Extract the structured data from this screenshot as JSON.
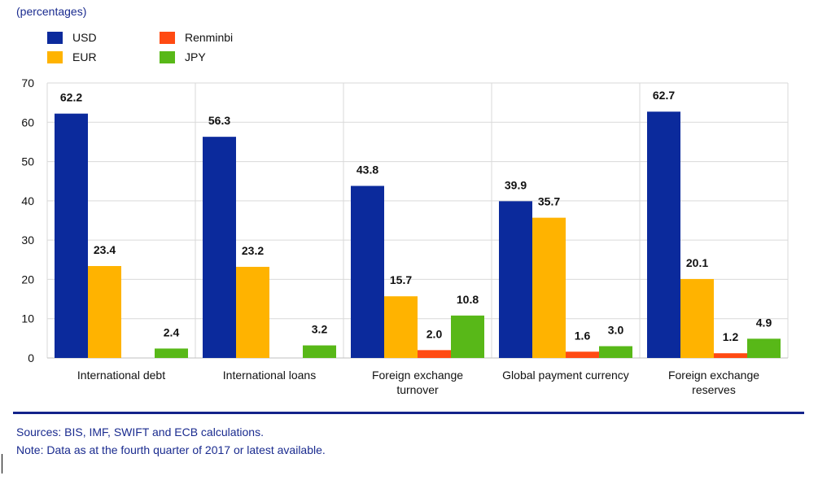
{
  "subtitle": "(percentages)",
  "legend": [
    {
      "name": "USD",
      "color": "#0b2a9c"
    },
    {
      "name": "Renminbi",
      "color": "#ff4a12"
    },
    {
      "name": "EUR",
      "color": "#ffb300"
    },
    {
      "name": "JPY",
      "color": "#58b818"
    }
  ],
  "chart_data": {
    "type": "bar",
    "categories": [
      [
        "International debt"
      ],
      [
        "International loans"
      ],
      [
        "Foreign exchange",
        "turnover"
      ],
      [
        "Global payment currency"
      ],
      [
        "Foreign exchange",
        "reserves"
      ]
    ],
    "series": [
      {
        "name": "USD",
        "color": "#0b2a9c",
        "values": [
          62.2,
          56.3,
          43.8,
          39.9,
          62.7
        ]
      },
      {
        "name": "EUR",
        "color": "#ffb300",
        "values": [
          23.4,
          23.2,
          15.7,
          35.7,
          20.1
        ]
      },
      {
        "name": "Renminbi",
        "color": "#ff4a12",
        "values": [
          null,
          null,
          2.0,
          1.6,
          1.2
        ]
      },
      {
        "name": "JPY",
        "color": "#58b818",
        "values": [
          2.4,
          3.2,
          10.8,
          3.0,
          4.9
        ]
      }
    ],
    "ylim": [
      0,
      70
    ],
    "yticks": [
      0,
      10,
      20,
      30,
      40,
      50,
      60,
      70
    ],
    "grid": true,
    "legend_position": "top-left"
  },
  "footer": {
    "sources": "Sources: BIS, IMF, SWIFT and ECB calculations.",
    "note": "Note: Data as at the fourth quarter of 2017 or latest available."
  },
  "colors": {
    "text_accent": "#1a2b8f",
    "rule": "#13238b",
    "grid": "#d9d9d9"
  }
}
